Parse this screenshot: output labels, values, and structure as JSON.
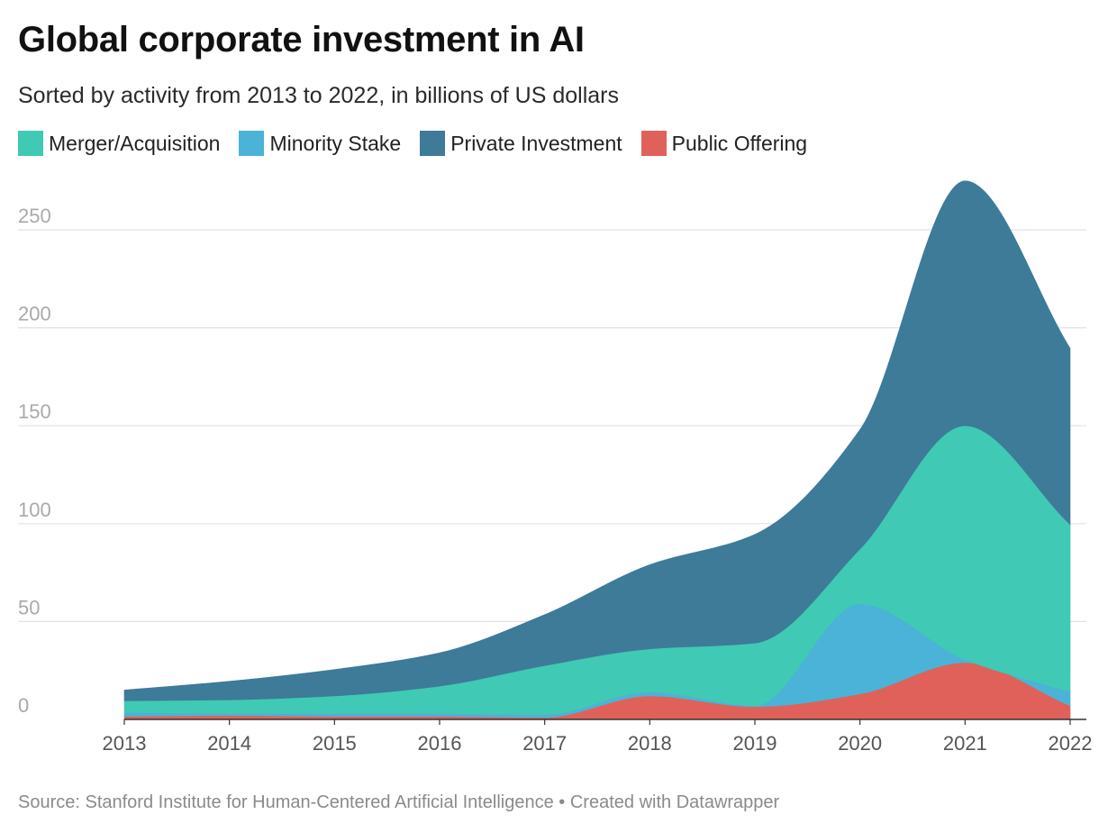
{
  "title": "Global corporate investment in AI",
  "subtitle": "Sorted by activity from 2013 to 2022, in billions of US dollars",
  "source_text": "Source: Stanford Institute for Human-Centered Artificial Intelligence • Created with Datawrapper",
  "legend": [
    {
      "label": "Merger/Acquisition",
      "color": "#40c9b4"
    },
    {
      "label": "Minority Stake",
      "color": "#4ab3d7"
    },
    {
      "label": "Private Investment",
      "color": "#3d7b98"
    },
    {
      "label": "Public Offering",
      "color": "#e0615a"
    }
  ],
  "chart_data": {
    "type": "area",
    "stacked": true,
    "title": "Global corporate investment in AI",
    "subtitle": "Sorted by activity from 2013 to 2022, in billions of US dollars",
    "xlabel": "",
    "ylabel": "",
    "x": [
      "2013",
      "2014",
      "2015",
      "2016",
      "2017",
      "2018",
      "2019",
      "2020",
      "2021",
      "2022"
    ],
    "ylim": [
      0,
      250
    ],
    "yticks": [
      "0",
      "50",
      "100",
      "150",
      "200",
      "250"
    ],
    "grid": true,
    "stack_order_bottom_to_top": [
      "Public Offering",
      "Minority Stake",
      "Merger/Acquisition",
      "Private Investment"
    ],
    "series": [
      {
        "name": "Public Offering",
        "color": "#e0615a",
        "values": [
          1.5,
          2.0,
          1.5,
          1.5,
          1.0,
          12.0,
          6.5,
          13.0,
          29.0,
          7.0
        ]
      },
      {
        "name": "Minority Stake",
        "color": "#4ab3d7",
        "values": [
          2.0,
          1.0,
          1.5,
          1.5,
          1.5,
          2.0,
          0.5,
          46.0,
          1.5,
          7.0
        ]
      },
      {
        "name": "Merger/Acquisition",
        "color": "#40c9b4",
        "values": [
          6.0,
          7.0,
          9.0,
          14.0,
          25.0,
          22.0,
          32.0,
          28.0,
          119.5,
          85.5
        ]
      },
      {
        "name": "Private Investment",
        "color": "#3d7b98",
        "values": [
          5.5,
          9.5,
          13.5,
          17.0,
          26.0,
          43.0,
          55.5,
          61.0,
          125.0,
          90.0
        ]
      }
    ]
  }
}
